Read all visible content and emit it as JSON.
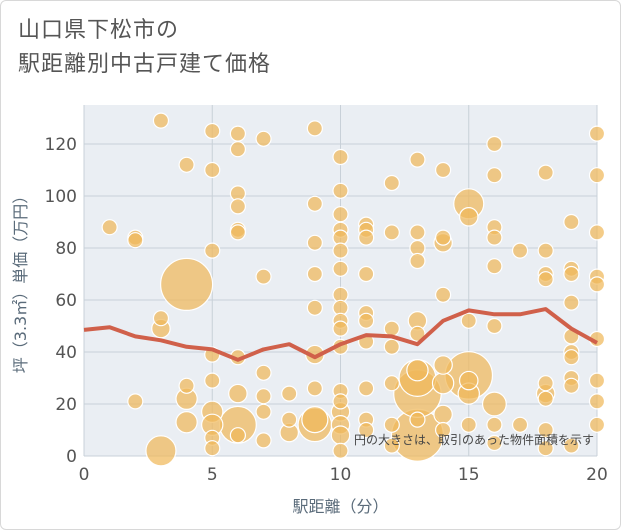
{
  "title_line1": "山口県下松市の",
  "title_line2": "駅距離別中古戸建て価格",
  "chart_data": {
    "type": "scatter",
    "title": "山口県下松市の 駅距離別中古戸建て価格",
    "xlabel": "駅距離（分）",
    "ylabel": "坪（3.3㎡）単価（万円）",
    "xlim": [
      0,
      20
    ],
    "ylim": [
      0,
      135
    ],
    "x_ticks": [
      0,
      5,
      10,
      15,
      20
    ],
    "y_ticks": [
      0,
      20,
      40,
      60,
      80,
      100,
      120
    ],
    "grid": true,
    "annotation": "円の大きさは、取引のあった物件面積を示す",
    "colors": {
      "bubble": "#f0b95a",
      "bubble_stroke": "#ffffff",
      "trend": "#d0604a",
      "grid": "#c8d0d8",
      "plot_bg": "#eaeef3"
    },
    "trend_line": {
      "name": "",
      "x": [
        0,
        1,
        2,
        3,
        4,
        5,
        6,
        7,
        8,
        9,
        10,
        11,
        12,
        13,
        14,
        15,
        16,
        17,
        18,
        19,
        20
      ],
      "y": [
        48.5,
        49.5,
        46,
        44.5,
        42,
        41,
        37,
        41,
        43,
        38,
        43,
        46.5,
        46,
        43,
        52,
        56,
        54.5,
        54.5,
        56.5,
        49,
        43.5
      ]
    },
    "bubbles": [
      {
        "x": 3,
        "y": 129,
        "s": 1
      },
      {
        "x": 5,
        "y": 125,
        "s": 1
      },
      {
        "x": 6,
        "y": 124,
        "s": 1
      },
      {
        "x": 6,
        "y": 118,
        "s": 1
      },
      {
        "x": 7,
        "y": 122,
        "s": 1
      },
      {
        "x": 9,
        "y": 126,
        "s": 1
      },
      {
        "x": 4,
        "y": 112,
        "s": 1
      },
      {
        "x": 5,
        "y": 110,
        "s": 1
      },
      {
        "x": 10,
        "y": 115,
        "s": 1
      },
      {
        "x": 13,
        "y": 114,
        "s": 1
      },
      {
        "x": 14,
        "y": 110,
        "s": 1
      },
      {
        "x": 16,
        "y": 120,
        "s": 1
      },
      {
        "x": 16,
        "y": 108,
        "s": 1
      },
      {
        "x": 18,
        "y": 109,
        "s": 1
      },
      {
        "x": 20,
        "y": 124,
        "s": 1
      },
      {
        "x": 20,
        "y": 108,
        "s": 1
      },
      {
        "x": 12,
        "y": 105,
        "s": 1
      },
      {
        "x": 6,
        "y": 101,
        "s": 1
      },
      {
        "x": 10,
        "y": 102,
        "s": 1
      },
      {
        "x": 6,
        "y": 96,
        "s": 1
      },
      {
        "x": 9,
        "y": 97,
        "s": 1
      },
      {
        "x": 15,
        "y": 97,
        "s": 4
      },
      {
        "x": 15,
        "y": 92,
        "s": 1.5
      },
      {
        "x": 1,
        "y": 88,
        "s": 1
      },
      {
        "x": 2,
        "y": 84,
        "s": 1
      },
      {
        "x": 2,
        "y": 83,
        "s": 1
      },
      {
        "x": 6,
        "y": 87,
        "s": 1
      },
      {
        "x": 6,
        "y": 86,
        "s": 1
      },
      {
        "x": 10,
        "y": 93,
        "s": 1
      },
      {
        "x": 10,
        "y": 87,
        "s": 1
      },
      {
        "x": 10,
        "y": 84,
        "s": 1
      },
      {
        "x": 11,
        "y": 89,
        "s": 1
      },
      {
        "x": 11,
        "y": 87,
        "s": 1
      },
      {
        "x": 11,
        "y": 84,
        "s": 1
      },
      {
        "x": 12,
        "y": 86,
        "s": 1
      },
      {
        "x": 13,
        "y": 86,
        "s": 1
      },
      {
        "x": 13,
        "y": 80,
        "s": 1
      },
      {
        "x": 13,
        "y": 75,
        "s": 1
      },
      {
        "x": 14,
        "y": 82,
        "s": 1.5
      },
      {
        "x": 14,
        "y": 84,
        "s": 1
      },
      {
        "x": 16,
        "y": 88,
        "s": 1
      },
      {
        "x": 16,
        "y": 84,
        "s": 1
      },
      {
        "x": 17,
        "y": 79,
        "s": 1
      },
      {
        "x": 18,
        "y": 79,
        "s": 1
      },
      {
        "x": 19,
        "y": 90,
        "s": 1
      },
      {
        "x": 20,
        "y": 86,
        "s": 1
      },
      {
        "x": 9,
        "y": 82,
        "s": 1
      },
      {
        "x": 10,
        "y": 79,
        "s": 1
      },
      {
        "x": 5,
        "y": 79,
        "s": 1
      },
      {
        "x": 4,
        "y": 66,
        "s": 12
      },
      {
        "x": 7,
        "y": 69,
        "s": 1
      },
      {
        "x": 9,
        "y": 70,
        "s": 1
      },
      {
        "x": 10,
        "y": 72,
        "s": 1
      },
      {
        "x": 11,
        "y": 70,
        "s": 1
      },
      {
        "x": 16,
        "y": 73,
        "s": 1
      },
      {
        "x": 18,
        "y": 70,
        "s": 1
      },
      {
        "x": 18,
        "y": 68,
        "s": 1
      },
      {
        "x": 19,
        "y": 72,
        "s": 1
      },
      {
        "x": 19,
        "y": 70,
        "s": 1
      },
      {
        "x": 20,
        "y": 69,
        "s": 1
      },
      {
        "x": 20,
        "y": 66,
        "s": 1
      },
      {
        "x": 14,
        "y": 62,
        "s": 1
      },
      {
        "x": 10,
        "y": 62,
        "s": 1
      },
      {
        "x": 9,
        "y": 57,
        "s": 1
      },
      {
        "x": 10,
        "y": 57,
        "s": 1
      },
      {
        "x": 19,
        "y": 59,
        "s": 1
      },
      {
        "x": 11,
        "y": 55,
        "s": 1
      },
      {
        "x": 3,
        "y": 53,
        "s": 1
      },
      {
        "x": 3,
        "y": 49,
        "s": 1.5
      },
      {
        "x": 10,
        "y": 52,
        "s": 1
      },
      {
        "x": 10,
        "y": 49,
        "s": 1
      },
      {
        "x": 11,
        "y": 52,
        "s": 1
      },
      {
        "x": 12,
        "y": 49,
        "s": 1
      },
      {
        "x": 13,
        "y": 52,
        "s": 1.5
      },
      {
        "x": 13,
        "y": 47,
        "s": 1
      },
      {
        "x": 15,
        "y": 52,
        "s": 1
      },
      {
        "x": 16,
        "y": 50,
        "s": 1
      },
      {
        "x": 19,
        "y": 46,
        "s": 1
      },
      {
        "x": 19,
        "y": 40,
        "s": 1
      },
      {
        "x": 19,
        "y": 38,
        "s": 1
      },
      {
        "x": 20,
        "y": 45,
        "s": 1
      },
      {
        "x": 11,
        "y": 44,
        "s": 1
      },
      {
        "x": 12,
        "y": 42,
        "s": 1
      },
      {
        "x": 10,
        "y": 42,
        "s": 1
      },
      {
        "x": 9,
        "y": 39,
        "s": 1.5
      },
      {
        "x": 5,
        "y": 39,
        "s": 1
      },
      {
        "x": 6,
        "y": 38,
        "s": 1
      },
      {
        "x": 7,
        "y": 32,
        "s": 1
      },
      {
        "x": 5,
        "y": 29,
        "s": 1
      },
      {
        "x": 4,
        "y": 27,
        "s": 1
      },
      {
        "x": 4,
        "y": 22,
        "s": 2
      },
      {
        "x": 2,
        "y": 21,
        "s": 1
      },
      {
        "x": 6,
        "y": 24,
        "s": 1.5
      },
      {
        "x": 7,
        "y": 23,
        "s": 1
      },
      {
        "x": 8,
        "y": 24,
        "s": 1
      },
      {
        "x": 9,
        "y": 26,
        "s": 1
      },
      {
        "x": 10,
        "y": 25,
        "s": 1
      },
      {
        "x": 10,
        "y": 21,
        "s": 1
      },
      {
        "x": 11,
        "y": 26,
        "s": 1
      },
      {
        "x": 12,
        "y": 28,
        "s": 1
      },
      {
        "x": 13,
        "y": 30,
        "s": 6
      },
      {
        "x": 13,
        "y": 24,
        "s": 10
      },
      {
        "x": 13,
        "y": 33,
        "s": 2
      },
      {
        "x": 14,
        "y": 28,
        "s": 2
      },
      {
        "x": 14,
        "y": 35,
        "s": 1.5
      },
      {
        "x": 15,
        "y": 31,
        "s": 10
      },
      {
        "x": 15,
        "y": 24,
        "s": 2
      },
      {
        "x": 15,
        "y": 29,
        "s": 1.5
      },
      {
        "x": 16,
        "y": 20,
        "s": 2.5
      },
      {
        "x": 18,
        "y": 28,
        "s": 1
      },
      {
        "x": 18,
        "y": 24,
        "s": 1.5
      },
      {
        "x": 18,
        "y": 22,
        "s": 1
      },
      {
        "x": 19,
        "y": 30,
        "s": 1
      },
      {
        "x": 19,
        "y": 27,
        "s": 1
      },
      {
        "x": 20,
        "y": 29,
        "s": 1
      },
      {
        "x": 20,
        "y": 21,
        "s": 1
      },
      {
        "x": 5,
        "y": 17,
        "s": 2
      },
      {
        "x": 6,
        "y": 12,
        "s": 6
      },
      {
        "x": 6,
        "y": 8,
        "s": 1
      },
      {
        "x": 5,
        "y": 12,
        "s": 2
      },
      {
        "x": 5,
        "y": 7,
        "s": 1
      },
      {
        "x": 4,
        "y": 13,
        "s": 2
      },
      {
        "x": 7,
        "y": 6,
        "s": 1
      },
      {
        "x": 7,
        "y": 17,
        "s": 1
      },
      {
        "x": 8,
        "y": 14,
        "s": 1
      },
      {
        "x": 8,
        "y": 9,
        "s": 1.5
      },
      {
        "x": 9,
        "y": 12,
        "s": 5
      },
      {
        "x": 9,
        "y": 14,
        "s": 3
      },
      {
        "x": 10,
        "y": 17,
        "s": 1.5
      },
      {
        "x": 10,
        "y": 12,
        "s": 1.5
      },
      {
        "x": 10,
        "y": 8,
        "s": 1.5
      },
      {
        "x": 11,
        "y": 14,
        "s": 1
      },
      {
        "x": 11,
        "y": 10,
        "s": 1
      },
      {
        "x": 12,
        "y": 12,
        "s": 1
      },
      {
        "x": 13,
        "y": 14,
        "s": 1
      },
      {
        "x": 13,
        "y": 8,
        "s": 12
      },
      {
        "x": 14,
        "y": 10,
        "s": 1
      },
      {
        "x": 14,
        "y": 16,
        "s": 1.5
      },
      {
        "x": 15,
        "y": 12,
        "s": 1
      },
      {
        "x": 16,
        "y": 12,
        "s": 1
      },
      {
        "x": 17,
        "y": 12,
        "s": 1
      },
      {
        "x": 18,
        "y": 10,
        "s": 1
      },
      {
        "x": 19,
        "y": 4,
        "s": 1
      },
      {
        "x": 20,
        "y": 12,
        "s": 1
      },
      {
        "x": 3,
        "y": 2,
        "s": 4
      },
      {
        "x": 5,
        "y": 3,
        "s": 1
      },
      {
        "x": 10,
        "y": 2,
        "s": 1
      },
      {
        "x": 12,
        "y": 4,
        "s": 1
      },
      {
        "x": 16,
        "y": 5,
        "s": 1
      },
      {
        "x": 18,
        "y": 3,
        "s": 1
      }
    ]
  }
}
